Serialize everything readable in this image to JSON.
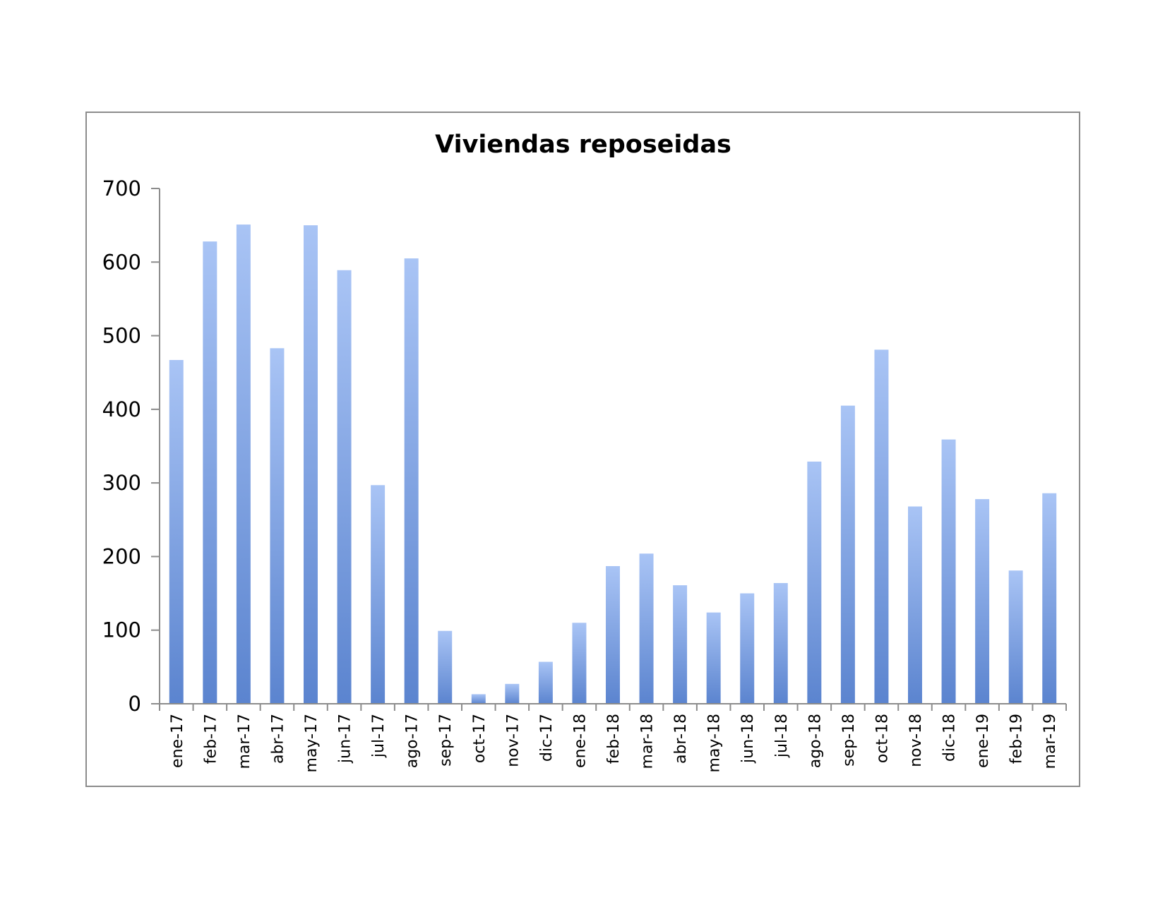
{
  "chart_data": {
    "type": "bar",
    "title": "Viviendas reposeidas",
    "xlabel": "",
    "ylabel": "",
    "ylim": [
      0,
      700
    ],
    "yticks": [
      0,
      100,
      200,
      300,
      400,
      500,
      600,
      700
    ],
    "grid": false,
    "legend": "none",
    "categories": [
      "ene-17",
      "feb-17",
      "mar-17",
      "abr-17",
      "may-17",
      "jun-17",
      "jul-17",
      "ago-17",
      "sep-17",
      "oct-17",
      "nov-17",
      "dic-17",
      "ene-18",
      "feb-18",
      "mar-18",
      "abr-18",
      "may-18",
      "jun-18",
      "jul-18",
      "ago-18",
      "sep-18",
      "oct-18",
      "nov-18",
      "dic-18",
      "ene-19",
      "feb-19",
      "mar-19"
    ],
    "values": [
      467,
      628,
      651,
      483,
      650,
      589,
      297,
      605,
      99,
      13,
      27,
      57,
      110,
      187,
      204,
      161,
      124,
      150,
      164,
      329,
      405,
      481,
      268,
      359,
      278,
      181,
      286
    ],
    "colors": {
      "bar_top": "#a9c4f5",
      "bar_bottom": "#5b84cf",
      "axis": "#8c8c8c",
      "frame": "#8c8c8c"
    }
  }
}
